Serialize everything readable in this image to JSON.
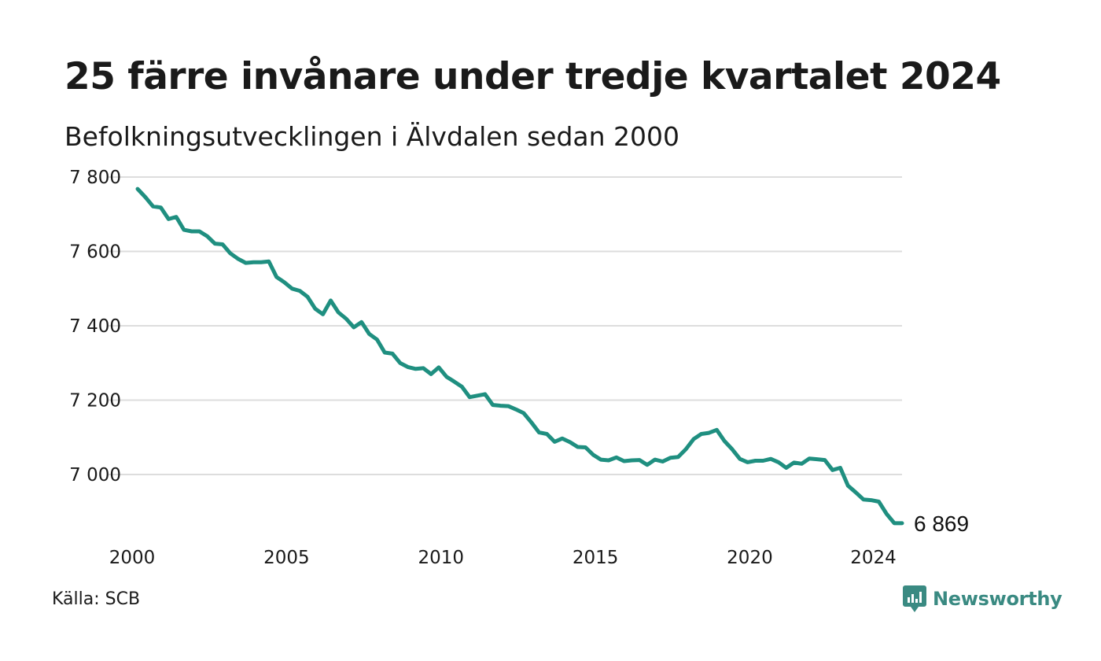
{
  "title": "25 färre invånare under tredje kvartalet 2024",
  "subtitle": "Befolkningsutvecklingen i Älvdalen sedan 2000",
  "source": "Källa: SCB",
  "logo": {
    "text": "Newsworthy",
    "icon": "newsworthy-chart-icon"
  },
  "colors": {
    "line": "#1f8f80",
    "grid": "#dddddd",
    "logo": "#3a8a82"
  },
  "chart_data": {
    "type": "line",
    "title": "25 färre invånare under tredje kvartalet 2024",
    "subtitle": "Befolkningsutvecklingen i Älvdalen sedan 2000",
    "xlabel": "",
    "ylabel": "",
    "ylim": [
      6840,
      7830
    ],
    "xlim": [
      2000,
      2024.75
    ],
    "grid": "horizontal",
    "legend": "none",
    "y_ticks": [
      7000,
      7200,
      7400,
      7600,
      7800
    ],
    "y_tick_labels": [
      "7 000",
      "7 200",
      "7 400",
      "7 600",
      "7 800"
    ],
    "x_ticks": [
      2000,
      2005,
      2010,
      2015,
      2020,
      2024
    ],
    "x_tick_labels": [
      "2000",
      "2005",
      "2010",
      "2015",
      "2020",
      "2024"
    ],
    "end_label": "6 869",
    "x": [
      2000.0,
      2000.25,
      2000.5,
      2000.75,
      2001.0,
      2001.25,
      2001.5,
      2001.75,
      2002.0,
      2002.25,
      2002.5,
      2002.75,
      2003.0,
      2003.25,
      2003.5,
      2003.75,
      2004.0,
      2004.25,
      2004.5,
      2004.75,
      2005.0,
      2005.25,
      2005.5,
      2005.75,
      2006.0,
      2006.25,
      2006.5,
      2006.75,
      2007.0,
      2007.25,
      2007.5,
      2007.75,
      2008.0,
      2008.25,
      2008.5,
      2008.75,
      2009.0,
      2009.25,
      2009.5,
      2009.75,
      2010.0,
      2010.25,
      2010.5,
      2010.75,
      2011.0,
      2011.25,
      2011.5,
      2011.75,
      2012.0,
      2012.25,
      2012.5,
      2012.75,
      2013.0,
      2013.25,
      2013.5,
      2013.75,
      2014.0,
      2014.25,
      2014.5,
      2014.75,
      2015.0,
      2015.25,
      2015.5,
      2015.75,
      2016.0,
      2016.25,
      2016.5,
      2016.75,
      2017.0,
      2017.25,
      2017.5,
      2017.75,
      2018.0,
      2018.25,
      2018.5,
      2018.75,
      2019.0,
      2019.25,
      2019.5,
      2019.75,
      2020.0,
      2020.25,
      2020.5,
      2020.75,
      2021.0,
      2021.25,
      2021.5,
      2021.75,
      2022.0,
      2022.25,
      2022.5,
      2022.75,
      2023.0,
      2023.25,
      2023.5,
      2023.75,
      2024.0,
      2024.25,
      2024.5,
      2024.75
    ],
    "series": [
      {
        "values": [
          7768,
          7746,
          7721,
          7718,
          7687,
          7693,
          7658,
          7654,
          7654,
          7641,
          7621,
          7619,
          7595,
          7580,
          7569,
          7571,
          7571,
          7573,
          7531,
          7517,
          7500,
          7494,
          7478,
          7446,
          7431,
          7468,
          7436,
          7419,
          7396,
          7410,
          7378,
          7363,
          7328,
          7325,
          7300,
          7289,
          7284,
          7286,
          7270,
          7288,
          7263,
          7250,
          7236,
          7208,
          7212,
          7216,
          7187,
          7185,
          7184,
          7175,
          7165,
          7140,
          7113,
          7109,
          7088,
          7097,
          7087,
          7074,
          7073,
          7053,
          7040,
          7038,
          7046,
          7036,
          7038,
          7039,
          7026,
          7040,
          7035,
          7045,
          7047,
          7068,
          7095,
          7109,
          7112,
          7120,
          7090,
          7068,
          7042,
          7033,
          7037,
          7037,
          7042,
          7033,
          7018,
          7032,
          7029,
          7043,
          7041,
          7039,
          7012,
          7018,
          6970,
          6952,
          6933,
          6931,
          6927,
          6894,
          6869,
          6869
        ]
      }
    ]
  }
}
